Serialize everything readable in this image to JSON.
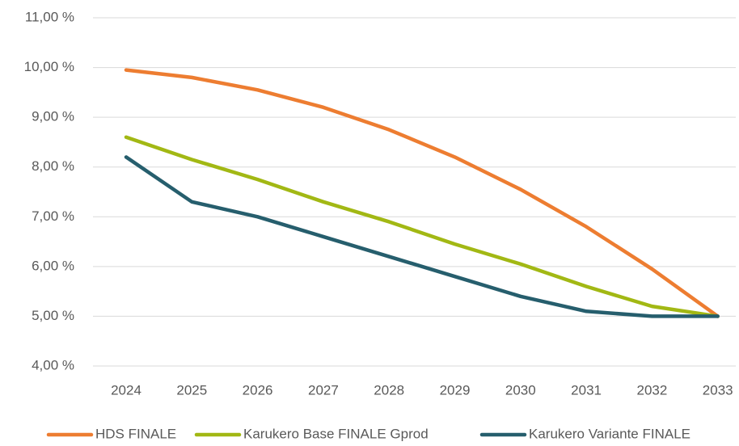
{
  "chart_data": {
    "type": "line",
    "categories": [
      "2024",
      "2025",
      "2026",
      "2027",
      "2028",
      "2029",
      "2030",
      "2031",
      "2032",
      "2033"
    ],
    "series": [
      {
        "name": "HDS FINALE",
        "color": "#ed7d31",
        "values": [
          9.95,
          9.8,
          9.55,
          9.2,
          8.75,
          8.2,
          7.55,
          6.8,
          5.95,
          5.0
        ]
      },
      {
        "name": "Karukero Base FINALE Gprod",
        "color": "#a2b814",
        "values": [
          8.6,
          8.15,
          7.75,
          7.3,
          6.9,
          6.45,
          6.05,
          5.6,
          5.2,
          5.0
        ]
      },
      {
        "name": "Karukero Variante FINALE",
        "color": "#265e6d",
        "values": [
          8.2,
          7.3,
          7.0,
          6.6,
          6.2,
          5.8,
          5.4,
          5.1,
          5.0,
          5.0
        ]
      }
    ],
    "ylim": [
      4,
      11
    ],
    "yticks": [
      {
        "value": 4,
        "label": "4,00 %"
      },
      {
        "value": 5,
        "label": "5,00 %"
      },
      {
        "value": 6,
        "label": "6,00 %"
      },
      {
        "value": 7,
        "label": "7,00 %"
      },
      {
        "value": 8,
        "label": "8,00 %"
      },
      {
        "value": 9,
        "label": "9,00 %"
      },
      {
        "value": 10,
        "label": "10,00 %"
      },
      {
        "value": 11,
        "label": "11,00 %"
      }
    ],
    "grid": true,
    "legend": "bottom"
  }
}
